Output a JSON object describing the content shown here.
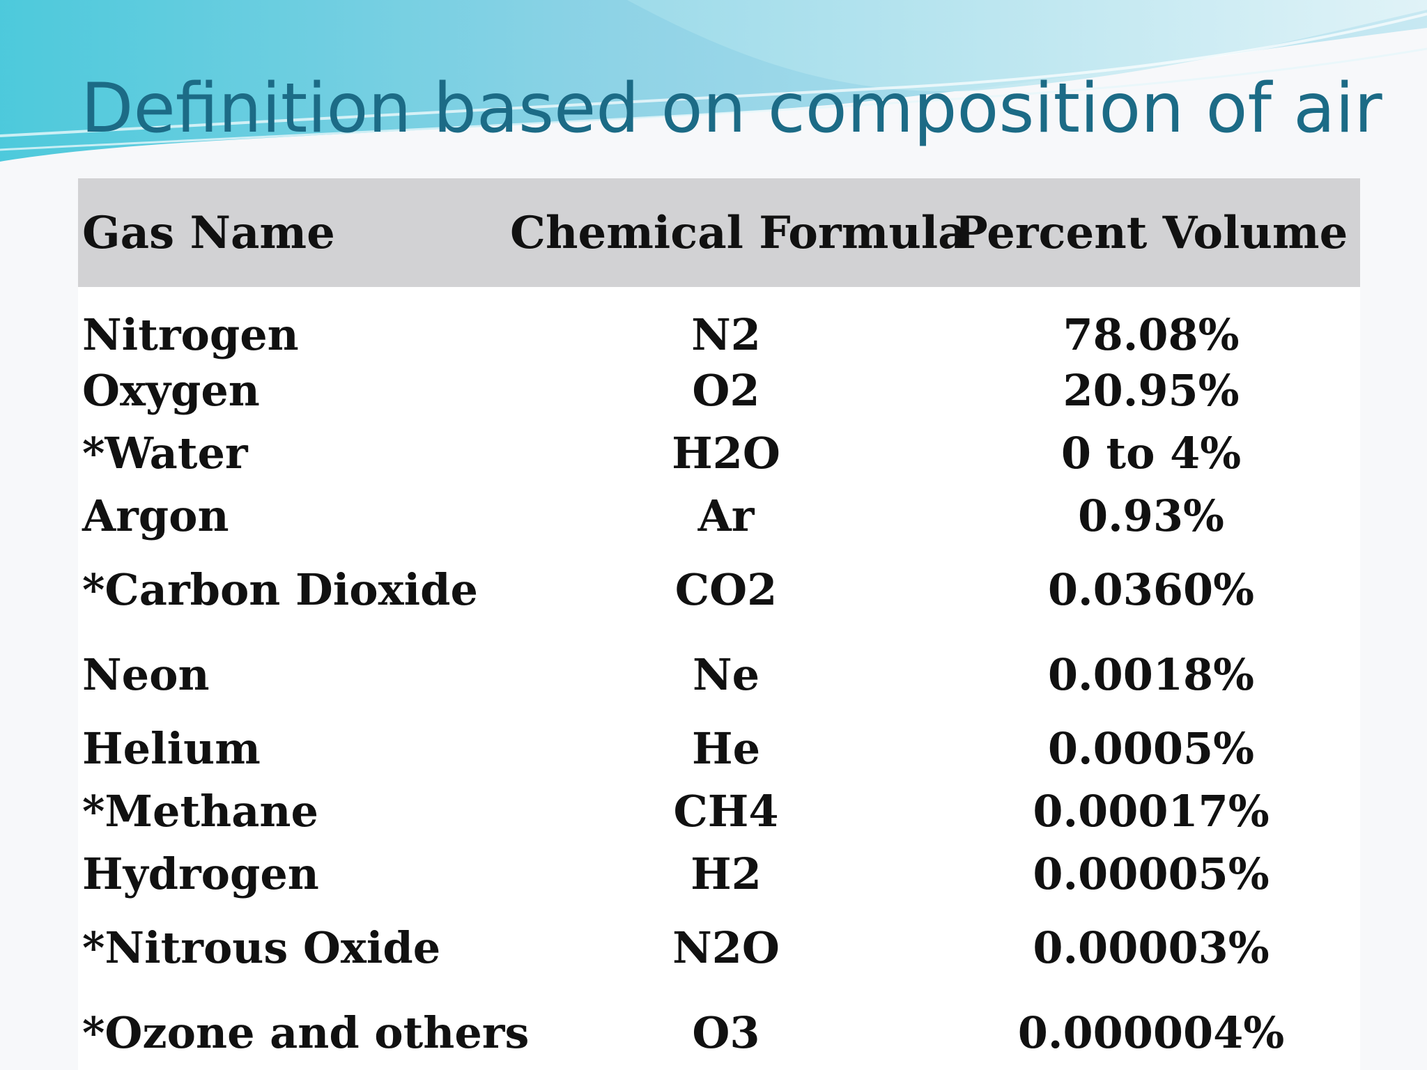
{
  "slide": {
    "title": "Definition based on composition of air"
  },
  "theme": {
    "title_color": "#1c6b86",
    "header_bg": "#d2d2d4",
    "wave_colors": [
      "#3fc6d8",
      "#8fd3e6",
      "#c9ebf3"
    ]
  },
  "table": {
    "headers": [
      "Gas Name",
      "Chemical Formula",
      "Percent Volume"
    ],
    "rows": [
      {
        "name": "Nitrogen",
        "formula": "N2",
        "percent": "78.08%"
      },
      {
        "name": "Oxygen",
        "formula": "O2",
        "percent": "20.95%"
      },
      {
        "name": "*Water",
        "formula": "H2O",
        "percent": "0 to 4%"
      },
      {
        "name": "Argon",
        "formula": "Ar",
        "percent": "0.93%"
      },
      {
        "name": "*Carbon Dioxide",
        "formula": "CO2",
        "percent": "0.0360%"
      },
      {
        "name": "Neon",
        "formula": "Ne",
        "percent": "0.0018%"
      },
      {
        "name": "Helium",
        "formula": "He",
        "percent": "0.0005%"
      },
      {
        "name": "*Methane",
        "formula": "CH4",
        "percent": "0.00017%"
      },
      {
        "name": "Hydrogen",
        "formula": "H2",
        "percent": "0.00005%"
      },
      {
        "name": "*Nitrous Oxide",
        "formula": "N2O",
        "percent": "0.00003%"
      },
      {
        "name": "*Ozone and others",
        "formula": "O3",
        "percent": "0.000004%"
      }
    ]
  }
}
